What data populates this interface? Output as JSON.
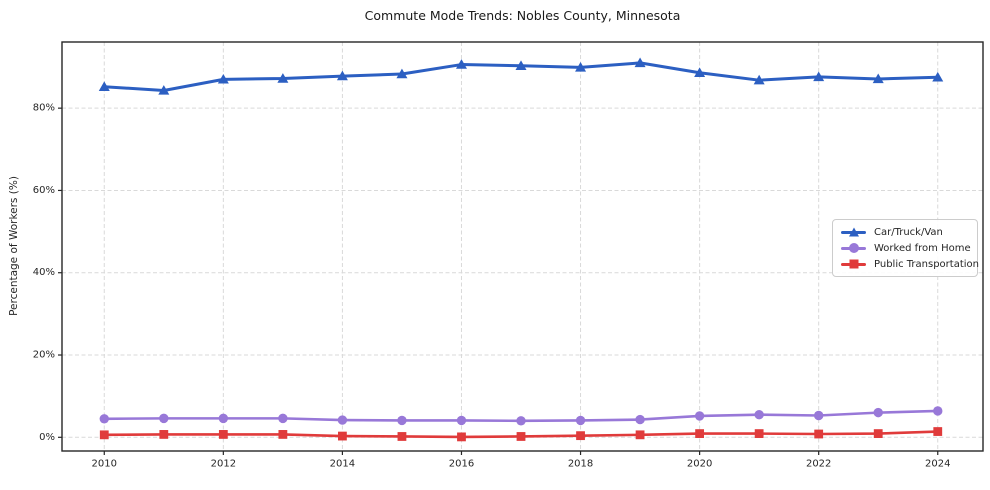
{
  "title": "Commute Mode Trends: Nobles County, Minnesota",
  "colors": {
    "car_truck_van": "#2c5fc2",
    "worked_from_home": "#9878d8",
    "public_transportation": "#e03b3b",
    "grid": "#d9d9d9",
    "axis": "#262626",
    "text": "#262626",
    "background": "#ffffff"
  },
  "chart_data": {
    "type": "line",
    "title": "Commute Mode Trends: Nobles County, Minnesota",
    "xlabel": "",
    "ylabel": "Percentage of Workers (%)",
    "x": [
      2010,
      2011,
      2012,
      2013,
      2014,
      2015,
      2016,
      2017,
      2018,
      2019,
      2020,
      2021,
      2022,
      2023,
      2024
    ],
    "series": [
      {
        "name": "Car/Truck/Van",
        "color": "#2c5fc2",
        "marker": "triangle",
        "line_width": 3,
        "values": [
          85.2,
          84.3,
          87.0,
          87.2,
          87.8,
          88.3,
          90.6,
          90.3,
          89.9,
          91.0,
          88.6,
          86.8,
          87.6,
          87.1,
          87.5
        ]
      },
      {
        "name": "Worked from Home",
        "color": "#9878d8",
        "marker": "circle",
        "line_width": 2.6,
        "values": [
          4.5,
          4.6,
          4.6,
          4.6,
          4.2,
          4.1,
          4.1,
          4.0,
          4.1,
          4.3,
          5.2,
          5.5,
          5.3,
          6.0,
          6.4
        ]
      },
      {
        "name": "Public Transportation",
        "color": "#e03b3b",
        "marker": "square",
        "line_width": 2.6,
        "values": [
          0.6,
          0.7,
          0.7,
          0.7,
          0.3,
          0.2,
          0.1,
          0.2,
          0.4,
          0.6,
          0.9,
          0.9,
          0.8,
          0.9,
          1.4
        ]
      }
    ],
    "xticks": {
      "values": [
        2010,
        2012,
        2014,
        2016,
        2018,
        2020,
        2022,
        2024
      ],
      "labels": [
        "2010",
        "2012",
        "2014",
        "2016",
        "2018",
        "2020",
        "2022",
        "2024"
      ]
    },
    "yticks": {
      "values": [
        0,
        20,
        40,
        60,
        80
      ],
      "labels": [
        "0%",
        "20%",
        "40%",
        "60%",
        "80%"
      ]
    },
    "xlim": [
      2009.29,
      2024.76
    ],
    "ylim": [
      -3.33,
      96.08
    ],
    "grid": true,
    "grid_style": "dashed",
    "legend_position": "center-right"
  }
}
